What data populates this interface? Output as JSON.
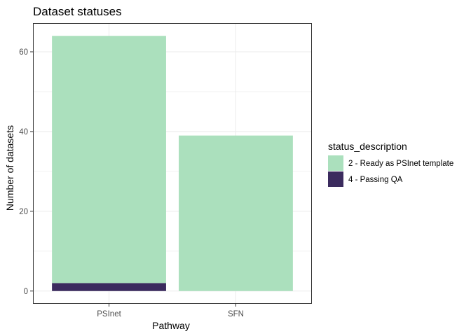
{
  "chart_data": {
    "type": "bar",
    "stacked": true,
    "title": "Dataset statuses",
    "xlabel": "Pathway",
    "ylabel": "Number of datasets",
    "categories": [
      "PSInet",
      "SFN"
    ],
    "yticks": [
      0,
      20,
      40,
      60
    ],
    "ylim": [
      -3.2,
      67.2
    ],
    "grid": true,
    "legend": {
      "title": "status_description",
      "placement": "right"
    },
    "series": [
      {
        "name": "4 - Passing QA",
        "values": [
          2,
          0
        ],
        "color": "#3b2b5e"
      },
      {
        "name": "2 - Ready as PSInet template",
        "values": [
          62,
          39
        ],
        "color": "#abe0bd"
      }
    ],
    "legend_order": [
      1,
      0
    ]
  }
}
